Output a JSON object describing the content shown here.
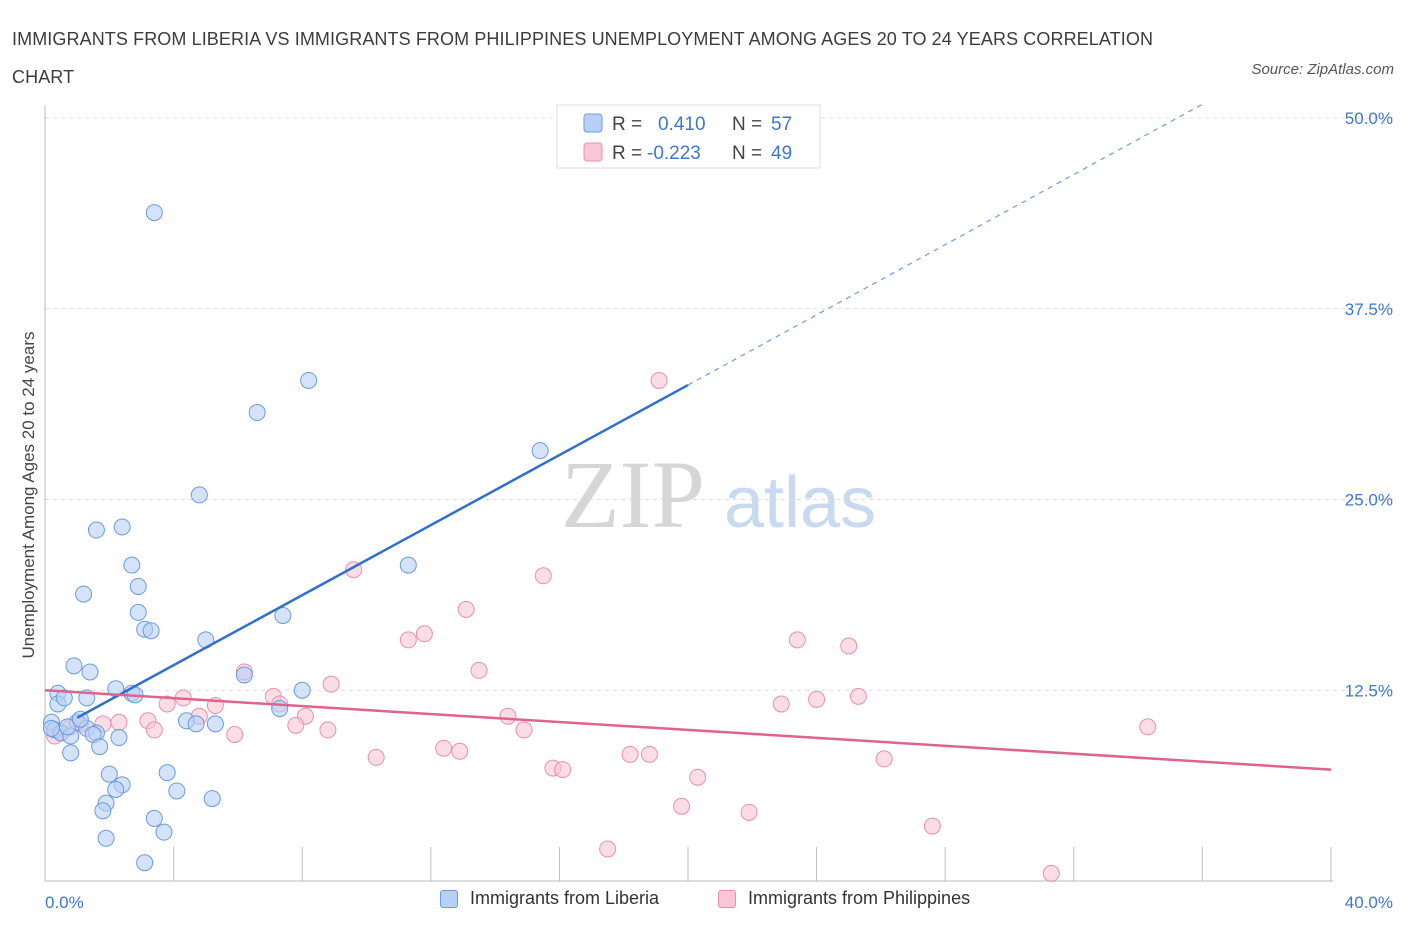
{
  "title": "IMMIGRANTS FROM LIBERIA VS IMMIGRANTS FROM PHILIPPINES UNEMPLOYMENT AMONG AGES 20 TO 24 YEARS CORRELATION CHART",
  "source": "Source: ZipAtlas.com",
  "watermark": {
    "zip": "ZIP",
    "atlas": "atlas"
  },
  "colors": {
    "liberia_fill": "#b7d0f5",
    "liberia_stroke": "#6a9be0",
    "liberia_line": "#2f6fd0",
    "philippines_fill": "#f8c6d4",
    "philippines_stroke": "#e890ad",
    "philippines_line": "#e0628e",
    "tick_text": "#3f78c8",
    "grid": "#dddddd"
  },
  "legend": {
    "rows": [
      {
        "r_label": "R =",
        "r_value": "0.410",
        "n_label": "N =",
        "n_value": "57",
        "series": "liberia"
      },
      {
        "r_label": "R =",
        "r_value": "-0.223",
        "n_label": "N =",
        "n_value": "49",
        "series": "philippines"
      }
    ]
  },
  "bottom_legend": {
    "liberia": "Immigrants from Liberia",
    "philippines": "Immigrants from Philippines"
  },
  "chart_data": {
    "type": "scatter",
    "title": "IMMIGRANTS FROM LIBERIA VS IMMIGRANTS FROM PHILIPPINES UNEMPLOYMENT AMONG AGES 20 TO 24 YEARS CORRELATION CHART",
    "xlabel": "",
    "ylabel": "Unemployment Among Ages 20 to 24 years",
    "xlim": [
      0,
      40
    ],
    "ylim": [
      0,
      50
    ],
    "x_tick_labels": [
      "0.0%",
      "40.0%"
    ],
    "y_ticks": [
      12.5,
      25.0,
      37.5,
      50.0
    ],
    "y_tick_labels": [
      "12.5%",
      "25.0%",
      "37.5%",
      "50.0%"
    ],
    "grid": true,
    "legend_position": "top-center",
    "series": [
      {
        "name": "Immigrants from Liberia",
        "r": 0.41,
        "n": 57,
        "trend": {
          "x": [
            1.0,
            20.0
          ],
          "y": [
            10.7,
            32.5
          ],
          "extended_to": [
            36.0,
            50.9
          ]
        },
        "points": [
          [
            3.4,
            43.8
          ],
          [
            8.2,
            32.8
          ],
          [
            6.6,
            30.7
          ],
          [
            15.4,
            28.2
          ],
          [
            4.8,
            25.3
          ],
          [
            2.4,
            23.2
          ],
          [
            1.6,
            23.0
          ],
          [
            2.7,
            20.7
          ],
          [
            11.3,
            20.7
          ],
          [
            2.9,
            19.3
          ],
          [
            1.2,
            18.8
          ],
          [
            2.9,
            17.6
          ],
          [
            7.4,
            17.4
          ],
          [
            3.1,
            16.5
          ],
          [
            3.3,
            16.4
          ],
          [
            5.0,
            15.8
          ],
          [
            0.9,
            14.1
          ],
          [
            1.4,
            13.7
          ],
          [
            6.2,
            13.5
          ],
          [
            2.2,
            12.6
          ],
          [
            2.7,
            12.3
          ],
          [
            8.0,
            12.5
          ],
          [
            0.4,
            12.3
          ],
          [
            1.3,
            12.0
          ],
          [
            0.4,
            11.6
          ],
          [
            0.6,
            12.0
          ],
          [
            2.8,
            12.2
          ],
          [
            7.3,
            11.3
          ],
          [
            4.4,
            10.5
          ],
          [
            0.2,
            10.4
          ],
          [
            1.0,
            10.4
          ],
          [
            1.3,
            10.0
          ],
          [
            5.3,
            10.3
          ],
          [
            4.7,
            10.3
          ],
          [
            0.3,
            9.9
          ],
          [
            0.5,
            9.7
          ],
          [
            0.2,
            10.0
          ],
          [
            0.8,
            9.5
          ],
          [
            1.6,
            9.7
          ],
          [
            1.5,
            9.6
          ],
          [
            2.3,
            9.4
          ],
          [
            1.7,
            8.8
          ],
          [
            0.8,
            8.4
          ],
          [
            2.0,
            7.0
          ],
          [
            3.8,
            7.1
          ],
          [
            2.4,
            6.3
          ],
          [
            2.2,
            6.0
          ],
          [
            4.1,
            5.9
          ],
          [
            5.2,
            5.4
          ],
          [
            1.9,
            5.1
          ],
          [
            1.8,
            4.6
          ],
          [
            3.4,
            4.1
          ],
          [
            1.9,
            2.8
          ],
          [
            3.7,
            3.2
          ],
          [
            3.1,
            1.2
          ],
          [
            0.7,
            10.1
          ],
          [
            1.1,
            10.6
          ]
        ]
      },
      {
        "name": "Immigrants from Philippines",
        "r": -0.223,
        "n": 49,
        "trend": {
          "x": [
            0.0,
            40.0
          ],
          "y": [
            12.5,
            7.3
          ]
        },
        "points": [
          [
            19.1,
            32.8
          ],
          [
            9.6,
            20.4
          ],
          [
            15.5,
            20.0
          ],
          [
            13.1,
            17.8
          ],
          [
            11.8,
            16.2
          ],
          [
            11.3,
            15.8
          ],
          [
            23.4,
            15.8
          ],
          [
            25.0,
            15.4
          ],
          [
            13.5,
            13.8
          ],
          [
            6.2,
            13.7
          ],
          [
            8.9,
            12.9
          ],
          [
            7.1,
            12.1
          ],
          [
            25.3,
            12.1
          ],
          [
            4.3,
            12.0
          ],
          [
            24.0,
            11.9
          ],
          [
            3.8,
            11.6
          ],
          [
            22.9,
            11.6
          ],
          [
            7.3,
            11.6
          ],
          [
            5.3,
            11.5
          ],
          [
            4.8,
            10.8
          ],
          [
            8.1,
            10.8
          ],
          [
            14.4,
            10.8
          ],
          [
            3.2,
            10.5
          ],
          [
            2.3,
            10.4
          ],
          [
            1.8,
            10.3
          ],
          [
            1.1,
            10.3
          ],
          [
            7.8,
            10.2
          ],
          [
            8.8,
            9.9
          ],
          [
            14.9,
            9.9
          ],
          [
            34.3,
            10.1
          ],
          [
            3.4,
            9.9
          ],
          [
            0.5,
            9.7
          ],
          [
            0.8,
            10.1
          ],
          [
            5.9,
            9.6
          ],
          [
            0.3,
            9.5
          ],
          [
            12.4,
            8.7
          ],
          [
            12.9,
            8.5
          ],
          [
            18.2,
            8.3
          ],
          [
            18.8,
            8.3
          ],
          [
            10.3,
            8.1
          ],
          [
            26.1,
            8.0
          ],
          [
            15.8,
            7.4
          ],
          [
            16.1,
            7.3
          ],
          [
            20.3,
            6.8
          ],
          [
            19.8,
            4.9
          ],
          [
            21.9,
            4.5
          ],
          [
            27.6,
            3.6
          ],
          [
            17.5,
            2.1
          ],
          [
            31.3,
            0.5
          ]
        ]
      }
    ]
  }
}
